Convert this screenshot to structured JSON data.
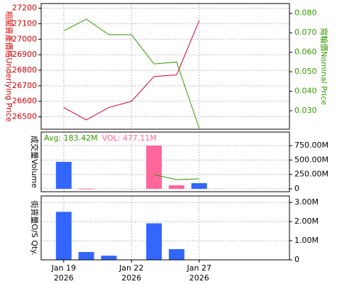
{
  "chart_data": [
    {
      "type": "line",
      "ylabel": "相關資產價格Underlying Price",
      "ylabel_color": "#cc0000",
      "y2label": "窩輪價Nominal Price",
      "y2label_color": "#339900",
      "xlim": [
        -1,
        10
      ],
      "ylim": [
        26420,
        27230
      ],
      "yticks": [
        26500,
        26600,
        26700,
        26800,
        26900,
        27000,
        27100,
        27200
      ],
      "y2lim": [
        0.0205,
        0.085
      ],
      "y2ticks": [
        {
          "value": 0.03,
          "label": "0.030"
        },
        {
          "value": 0.04,
          "label": "0.040"
        },
        {
          "value": 0.05,
          "label": "0.050"
        },
        {
          "value": 0.06,
          "label": "0.060"
        },
        {
          "value": 0.07,
          "label": "0.070"
        },
        {
          "value": 0.08,
          "label": "0.080"
        }
      ],
      "grid": true,
      "series": [
        {
          "color": "#cc0033",
          "values": [
            26560,
            26480,
            26560,
            26600,
            26760,
            26770,
            27120
          ]
        },
        {
          "color": "#339900",
          "axis": "y2",
          "values": [
            0.071,
            0.077,
            0.069,
            0.069,
            0.054,
            0.055,
            0.021
          ]
        }
      ]
    },
    {
      "type": "bar",
      "ylabel": "成交量Volume",
      "xlim": [
        -1,
        10
      ],
      "ylim": [
        -50000000,
        985000000
      ],
      "yticks": [
        0,
        {
          "value": 250000000,
          "label": "250.00M"
        },
        {
          "value": 500000000,
          "label": "500.00M"
        },
        {
          "value": 750000000,
          "label": "750.00M"
        }
      ],
      "grid": true,
      "values": [
        468000000,
        5000000,
        null,
        null,
        751000000,
        62000000,
        98000000
      ],
      "colors": [
        "#3366ff",
        "#ff6699",
        null,
        null,
        "#ff6699",
        "#ff6699",
        "#3366ff"
      ],
      "lines": [
        {
          "color": "#339900",
          "values": [
            null,
            null,
            null,
            null,
            246000000,
            160000000,
            172000000
          ]
        }
      ],
      "annotations": [
        {
          "text": "Avg: 183.42M",
          "color": "#339900"
        },
        {
          "text": "VOL: 477.11M",
          "color": "#ff6699"
        }
      ]
    },
    {
      "type": "bar",
      "ylabel": "街貨量O/S Qty.",
      "xlim": [
        -1,
        10
      ],
      "ylim": [
        0,
        3340000
      ],
      "yticks": [
        0,
        {
          "value": 1000000,
          "label": "1.00M"
        },
        {
          "value": 2000000,
          "label": "2.00M"
        },
        {
          "value": 3000000,
          "label": "3.00M"
        }
      ],
      "grid": true,
      "color": "#3366ff",
      "values": [
        2510000,
        410000,
        220000,
        null,
        1910000,
        560000,
        20000
      ],
      "categories": [
        "Jan 19",
        null,
        null,
        "Jan 22",
        null,
        null,
        "Jan 27"
      ],
      "category_years": [
        "2026",
        null,
        null,
        "2026",
        null,
        null,
        "2026"
      ]
    }
  ]
}
